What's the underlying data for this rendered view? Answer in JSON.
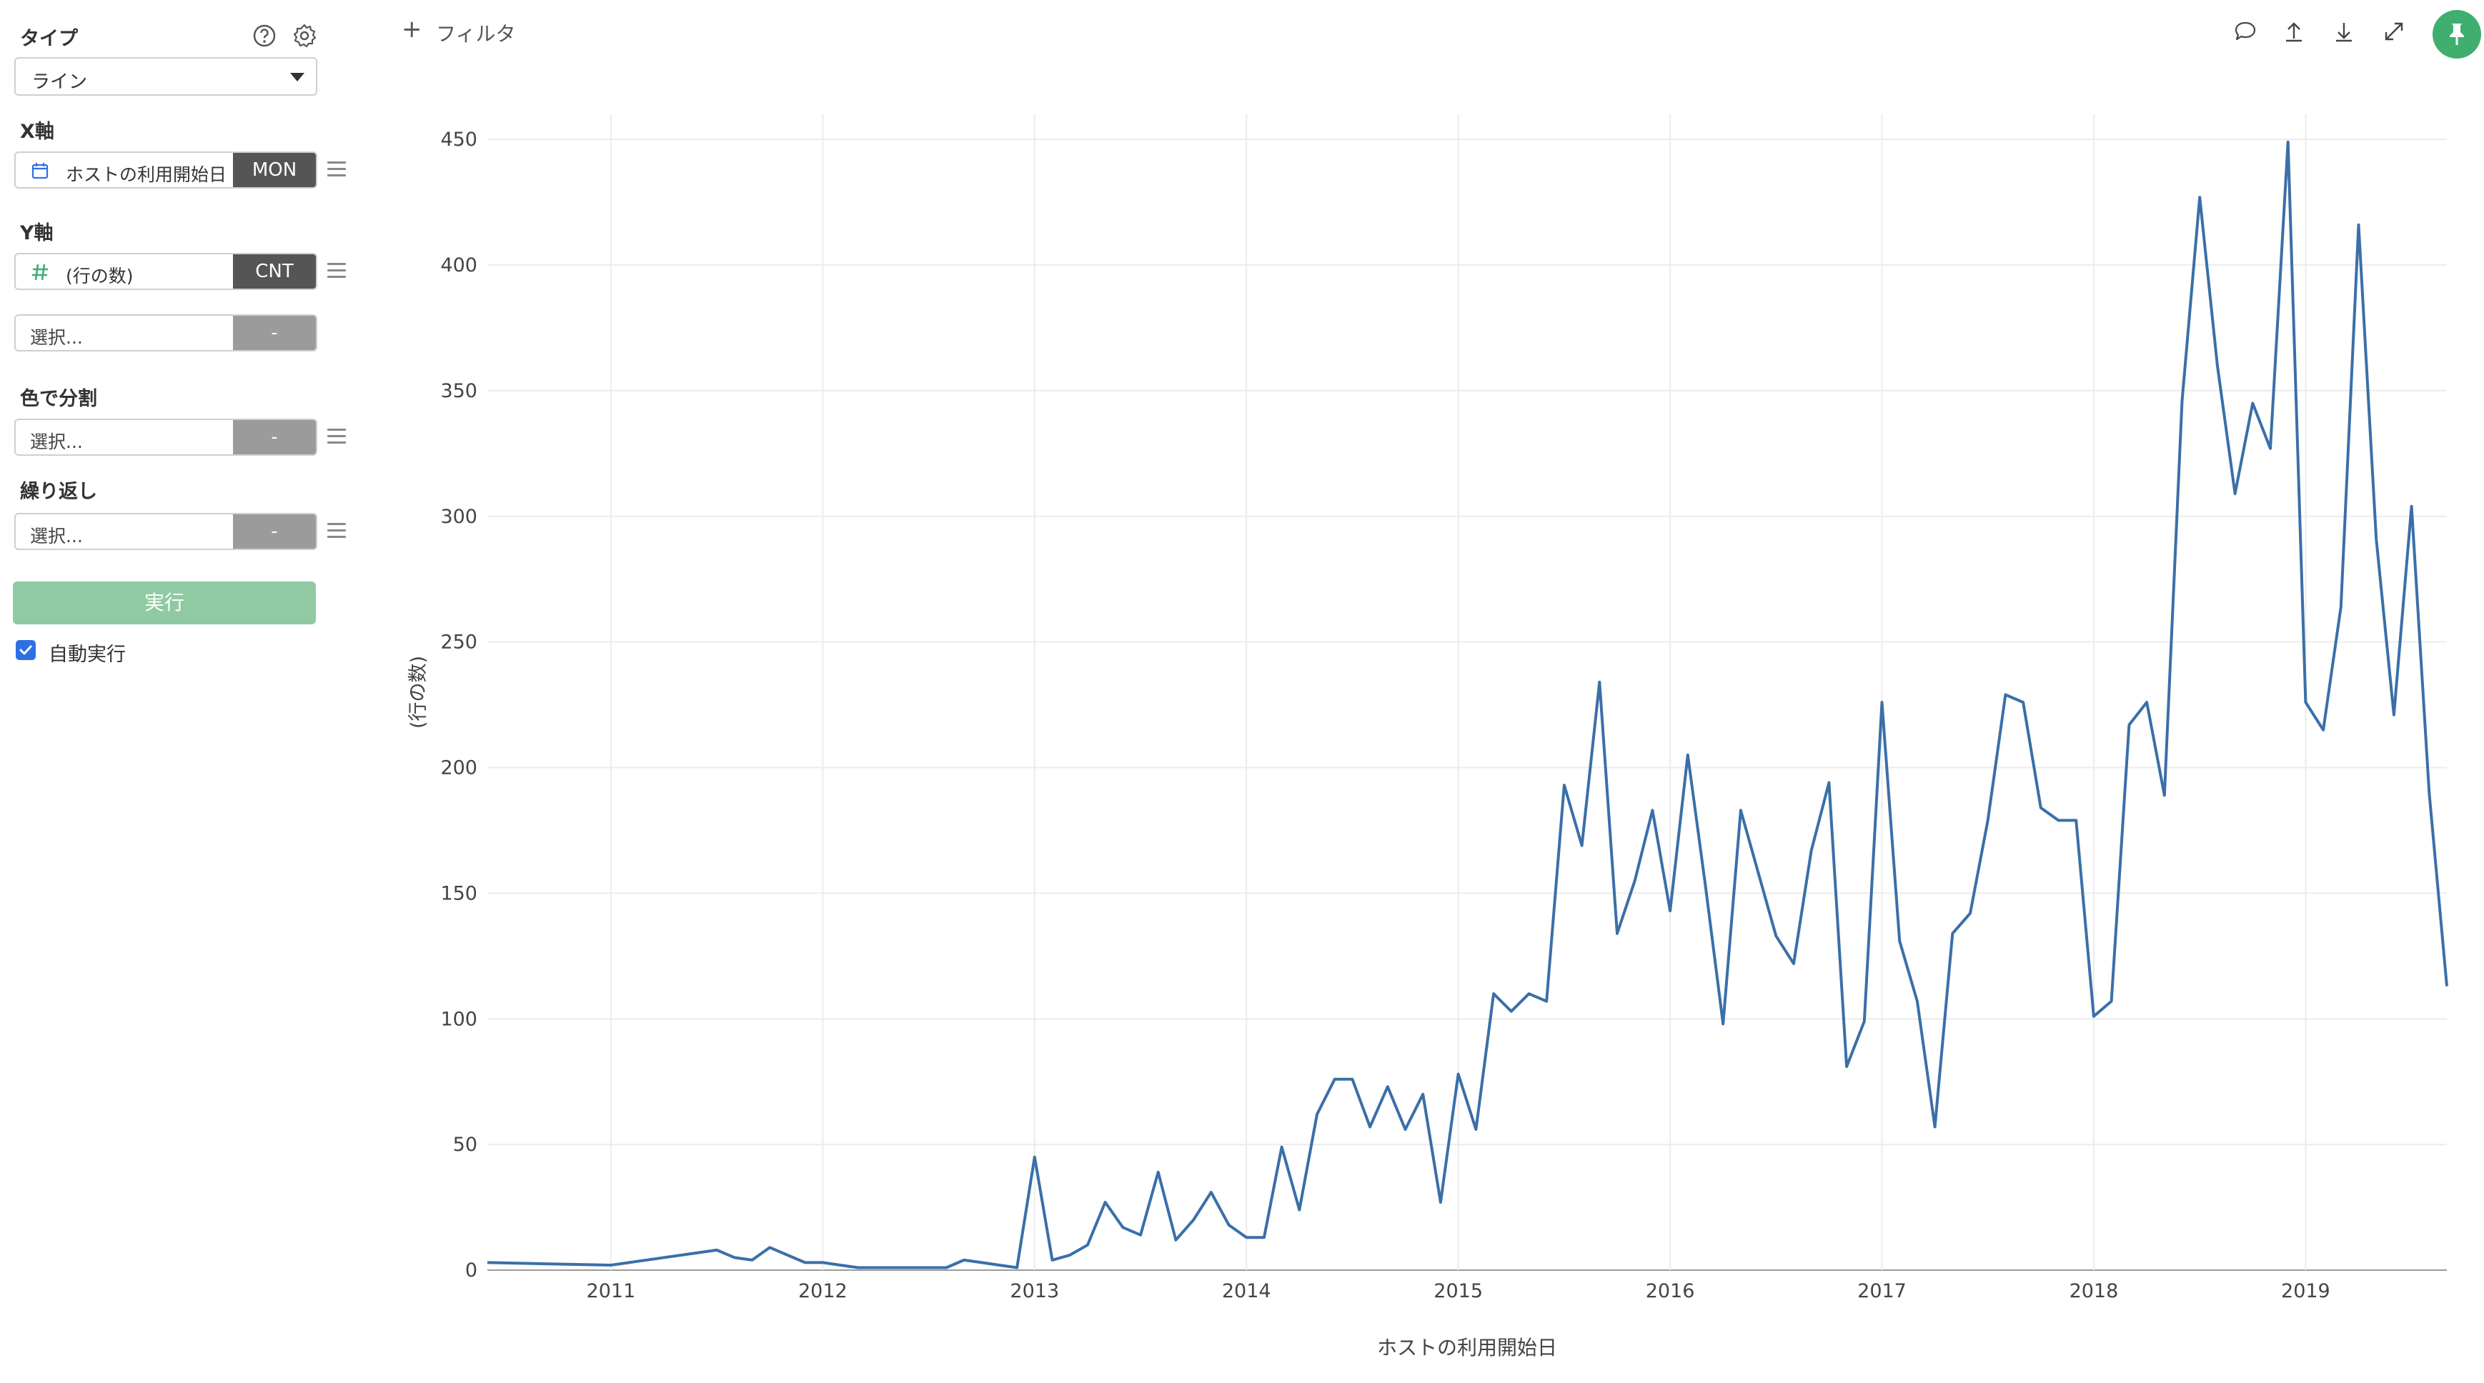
{
  "sidebar": {
    "type": {
      "label": "タイプ",
      "value": "ライン"
    },
    "x_axis": {
      "label": "X軸",
      "field": "ホストの利用開始日",
      "agg": "MON"
    },
    "y_axis": {
      "label": "Y軸",
      "field": "(行の数)",
      "agg": "CNT",
      "extra_placeholder": "選択...",
      "extra_agg": "-"
    },
    "color_split": {
      "label": "色で分割",
      "placeholder": "選択...",
      "agg": "-"
    },
    "repeat": {
      "label": "繰り返し",
      "placeholder": "選択...",
      "agg": "-"
    },
    "run_label": "実行",
    "auto_run": {
      "label": "自動実行",
      "checked": true
    }
  },
  "toolbar": {
    "filter_label": "フィルタ",
    "icons": [
      "comment-icon",
      "upload-icon",
      "download-icon",
      "expand-icon",
      "pin-icon"
    ],
    "accent_color": "#3fae6f"
  },
  "chart_data": {
    "type": "line",
    "xlabel": "ホストの利用開始日",
    "ylabel": "(行の数)",
    "ylim": [
      0,
      460
    ],
    "yticks": [
      0,
      50,
      100,
      150,
      200,
      250,
      300,
      350,
      400,
      450
    ],
    "xtick_labels": [
      "2011",
      "2012",
      "2013",
      "2014",
      "2015",
      "2016",
      "2017",
      "2018",
      "2019"
    ],
    "line_color": "#3a6fa8",
    "x": [
      "2010-06",
      "2011-01",
      "2011-07",
      "2011-08",
      "2011-09",
      "2011-10",
      "2011-11",
      "2011-12",
      "2012-01",
      "2012-02",
      "2012-03",
      "2012-04",
      "2012-05",
      "2012-06",
      "2012-07",
      "2012-08",
      "2012-09",
      "2012-10",
      "2012-11",
      "2012-12",
      "2013-01",
      "2013-02",
      "2013-03",
      "2013-04",
      "2013-05",
      "2013-06",
      "2013-07",
      "2013-08",
      "2013-09",
      "2013-10",
      "2013-11",
      "2013-12",
      "2014-01",
      "2014-02",
      "2014-03",
      "2014-04",
      "2014-05",
      "2014-06",
      "2014-07",
      "2014-08",
      "2014-09",
      "2014-10",
      "2014-11",
      "2014-12",
      "2015-01",
      "2015-02",
      "2015-03",
      "2015-04",
      "2015-05",
      "2015-06",
      "2015-07",
      "2015-08",
      "2015-09",
      "2015-10",
      "2015-11",
      "2015-12",
      "2016-01",
      "2016-02",
      "2016-03",
      "2016-04",
      "2016-05",
      "2016-06",
      "2016-07",
      "2016-08",
      "2016-09",
      "2016-10",
      "2016-11",
      "2016-12",
      "2017-01",
      "2017-02",
      "2017-03",
      "2017-04",
      "2017-05",
      "2017-06",
      "2017-07",
      "2017-08",
      "2017-09",
      "2017-10",
      "2017-11",
      "2017-12",
      "2018-01",
      "2018-02",
      "2018-03",
      "2018-04",
      "2018-05",
      "2018-06",
      "2018-07",
      "2018-08",
      "2018-09",
      "2018-10",
      "2018-11",
      "2018-12",
      "2019-01",
      "2019-02",
      "2019-03",
      "2019-04",
      "2019-05",
      "2019-06",
      "2019-07",
      "2019-08",
      "2019-09"
    ],
    "values": [
      3,
      2,
      8,
      5,
      4,
      9,
      6,
      3,
      3,
      2,
      1,
      1,
      1,
      1,
      1,
      1,
      4,
      3,
      2,
      1,
      45,
      4,
      6,
      10,
      27,
      17,
      14,
      39,
      12,
      20,
      31,
      18,
      13,
      13,
      49,
      24,
      62,
      76,
      76,
      57,
      73,
      56,
      70,
      27,
      78,
      56,
      110,
      103,
      110,
      107,
      193,
      169,
      234,
      134,
      155,
      183,
      143,
      205,
      153,
      98,
      183,
      158,
      133,
      122,
      167,
      194,
      81,
      99,
      226,
      131,
      107,
      57,
      134,
      142,
      179,
      229,
      226,
      184,
      179,
      179,
      101,
      107,
      217,
      226,
      189,
      346,
      427,
      360,
      309,
      345,
      327,
      449,
      226,
      215,
      264,
      416,
      291,
      221,
      304,
      190,
      113
    ]
  }
}
